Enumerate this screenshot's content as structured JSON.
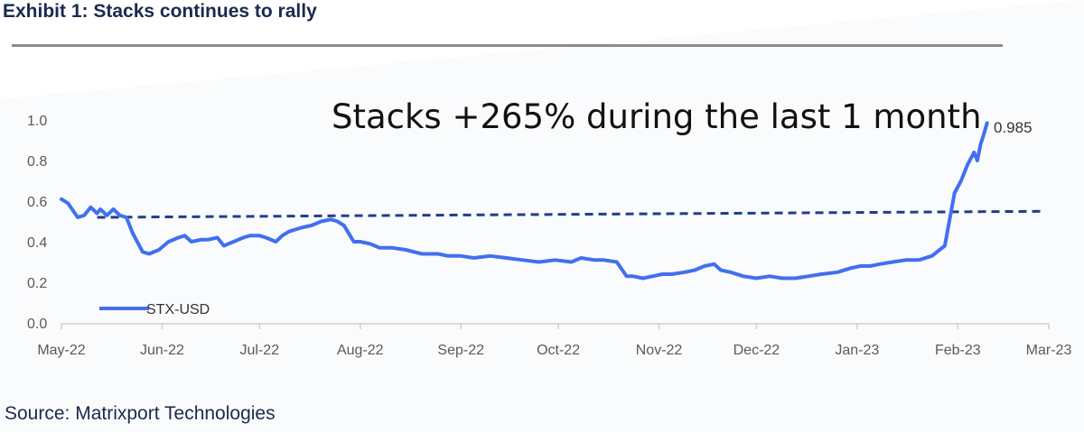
{
  "header": {
    "title": "Exhibit 1: Stacks continues to rally"
  },
  "footer": {
    "source": "Source: Matrixport Technologies"
  },
  "colors": {
    "title": "#1b2a4f",
    "series_line": "#4170ee",
    "reference_line": "#1f3e8c",
    "axis_text": "#5a5a5a",
    "axis_line": "#cfcfcf",
    "rule": "#8c8c8c"
  },
  "chart_data": {
    "type": "line",
    "annotation": "Stacks +265% during the last 1 month",
    "end_label": "0.985",
    "ylim": [
      0.0,
      1.0
    ],
    "yticks": [
      "0.0",
      "0.2",
      "0.4",
      "0.6",
      "0.8",
      "1.0"
    ],
    "xticks": [
      "May-22",
      "Jun-22",
      "Jul-22",
      "Aug-22",
      "Sep-22",
      "Oct-22",
      "Nov-22",
      "Dec-22",
      "Jan-23",
      "Feb-23",
      "Mar-23"
    ],
    "xlim": [
      "2022-05-01",
      "2023-03-01"
    ],
    "grid": false,
    "legend": "bottom-left",
    "reference_line": {
      "x": [
        "2022-05-12",
        "2023-02-28"
      ],
      "y": [
        0.52,
        0.55
      ]
    },
    "series": [
      {
        "name": "STX-USD",
        "x": [
          "2022-05-01",
          "2022-05-03",
          "2022-05-06",
          "2022-05-08",
          "2022-05-10",
          "2022-05-12",
          "2022-05-13",
          "2022-05-15",
          "2022-05-17",
          "2022-05-19",
          "2022-05-21",
          "2022-05-23",
          "2022-05-26",
          "2022-05-28",
          "2022-05-31",
          "2022-06-03",
          "2022-06-06",
          "2022-06-08",
          "2022-06-10",
          "2022-06-13",
          "2022-06-15",
          "2022-06-18",
          "2022-06-20",
          "2022-06-23",
          "2022-06-26",
          "2022-06-28",
          "2022-07-01",
          "2022-07-03",
          "2022-07-06",
          "2022-07-08",
          "2022-07-10",
          "2022-07-12",
          "2022-07-14",
          "2022-07-17",
          "2022-07-20",
          "2022-07-23",
          "2022-07-25",
          "2022-07-27",
          "2022-07-30",
          "2022-08-01",
          "2022-08-04",
          "2022-08-07",
          "2022-08-11",
          "2022-08-15",
          "2022-08-20",
          "2022-08-25",
          "2022-08-28",
          "2022-09-01",
          "2022-09-05",
          "2022-09-10",
          "2022-09-15",
          "2022-09-20",
          "2022-09-25",
          "2022-09-30",
          "2022-10-05",
          "2022-10-08",
          "2022-10-12",
          "2022-10-15",
          "2022-10-19",
          "2022-10-22",
          "2022-10-24",
          "2022-10-27",
          "2022-10-30",
          "2022-11-02",
          "2022-11-05",
          "2022-11-09",
          "2022-11-12",
          "2022-11-15",
          "2022-11-18",
          "2022-11-20",
          "2022-11-23",
          "2022-11-27",
          "2022-12-01",
          "2022-12-05",
          "2022-12-09",
          "2022-12-13",
          "2022-12-17",
          "2022-12-21",
          "2022-12-26",
          "2022-12-30",
          "2023-01-02",
          "2023-01-05",
          "2023-01-08",
          "2023-01-12",
          "2023-01-16",
          "2023-01-20",
          "2023-01-24",
          "2023-01-28",
          "2023-01-31",
          "2023-02-02",
          "2023-02-04",
          "2023-02-06",
          "2023-02-07",
          "2023-02-08",
          "2023-02-09",
          "2023-02-10"
        ],
        "values": [
          0.61,
          0.59,
          0.52,
          0.53,
          0.57,
          0.54,
          0.56,
          0.53,
          0.56,
          0.53,
          0.52,
          0.44,
          0.35,
          0.34,
          0.36,
          0.4,
          0.42,
          0.43,
          0.4,
          0.41,
          0.41,
          0.42,
          0.38,
          0.4,
          0.42,
          0.43,
          0.43,
          0.42,
          0.4,
          0.43,
          0.45,
          0.46,
          0.47,
          0.48,
          0.5,
          0.51,
          0.5,
          0.48,
          0.4,
          0.4,
          0.39,
          0.37,
          0.37,
          0.36,
          0.34,
          0.34,
          0.33,
          0.33,
          0.32,
          0.33,
          0.32,
          0.31,
          0.3,
          0.31,
          0.3,
          0.32,
          0.31,
          0.31,
          0.3,
          0.23,
          0.23,
          0.22,
          0.23,
          0.24,
          0.24,
          0.25,
          0.26,
          0.28,
          0.29,
          0.26,
          0.25,
          0.23,
          0.22,
          0.23,
          0.22,
          0.22,
          0.23,
          0.24,
          0.25,
          0.27,
          0.28,
          0.28,
          0.29,
          0.3,
          0.31,
          0.31,
          0.33,
          0.38,
          0.64,
          0.7,
          0.78,
          0.84,
          0.8,
          0.88,
          0.93,
          0.985
        ]
      }
    ]
  }
}
